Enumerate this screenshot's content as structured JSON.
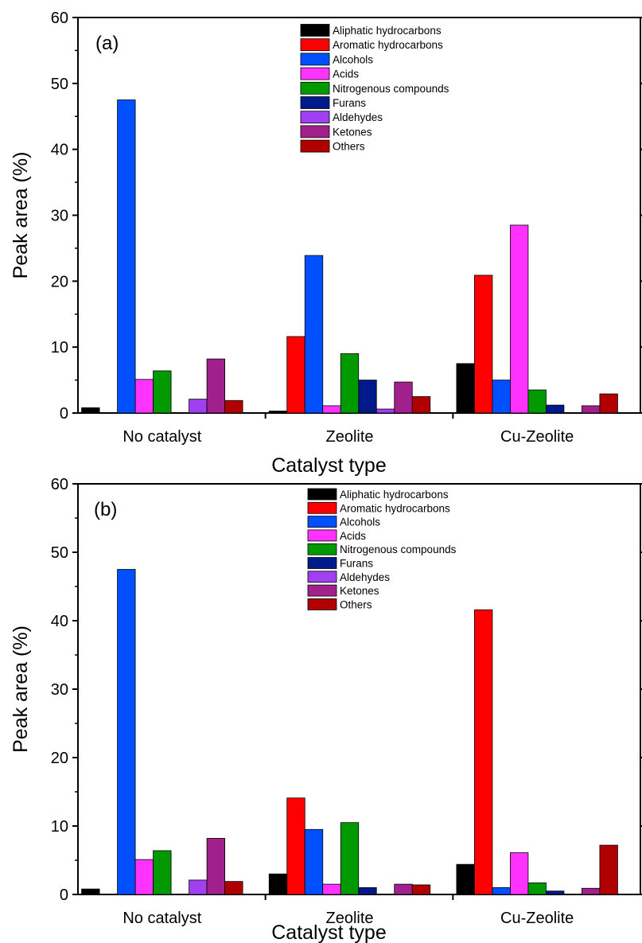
{
  "chart_data": [
    {
      "type": "bar",
      "panel_label": "(a)",
      "xlabel": "Catalyst type",
      "ylabel": "Peak area (%)",
      "ylim": [
        0,
        60
      ],
      "yticks": [
        0,
        10,
        20,
        30,
        40,
        50,
        60
      ],
      "categories": [
        "No catalyst",
        "Zeolite",
        "Cu-Zeolite"
      ],
      "legend_position": "top-right",
      "grid": false,
      "series": [
        {
          "name": "Aliphatic hydrocarbons",
          "color": "#000000",
          "values": [
            0.8,
            0.3,
            7.5
          ]
        },
        {
          "name": "Aromatic hydrocarbons",
          "color": "#ff0000",
          "values": [
            0,
            11.6,
            20.9
          ]
        },
        {
          "name": "Alcohols",
          "color": "#0050ff",
          "values": [
            47.5,
            23.9,
            5.0
          ]
        },
        {
          "name": "Acids",
          "color": "#ff33ff",
          "values": [
            5.1,
            1.1,
            28.5
          ]
        },
        {
          "name": "Nitrogenous compounds",
          "color": "#009a00",
          "values": [
            6.4,
            9.0,
            3.5
          ]
        },
        {
          "name": "Furans",
          "color": "#001a8c",
          "values": [
            0,
            5.0,
            1.2
          ]
        },
        {
          "name": "Aldehydes",
          "color": "#a040f0",
          "values": [
            2.1,
            0.6,
            0
          ]
        },
        {
          "name": "Ketones",
          "color": "#a0208c",
          "values": [
            8.2,
            4.7,
            1.1
          ]
        },
        {
          "name": "Others",
          "color": "#b00000",
          "values": [
            1.9,
            2.5,
            2.9
          ]
        }
      ]
    },
    {
      "type": "bar",
      "panel_label": "(b)",
      "xlabel": "Catalyst type",
      "ylabel": "Peak area (%)",
      "ylim": [
        0,
        60
      ],
      "yticks": [
        0,
        10,
        20,
        30,
        40,
        50,
        60
      ],
      "categories": [
        "No catalyst",
        "Zeolite",
        "Cu-Zeolite"
      ],
      "legend_position": "top-right",
      "grid": false,
      "series": [
        {
          "name": "Aliphatic hydrocarbons",
          "color": "#000000",
          "values": [
            0.8,
            3.0,
            4.4
          ]
        },
        {
          "name": "Aromatic hydrocarbons",
          "color": "#ff0000",
          "values": [
            0,
            14.1,
            41.6
          ]
        },
        {
          "name": "Alcohols",
          "color": "#0050ff",
          "values": [
            47.5,
            9.5,
            1.0
          ]
        },
        {
          "name": "Acids",
          "color": "#ff33ff",
          "values": [
            5.1,
            1.5,
            6.1
          ]
        },
        {
          "name": "Nitrogenous compounds",
          "color": "#009a00",
          "values": [
            6.4,
            10.5,
            1.7
          ]
        },
        {
          "name": "Furans",
          "color": "#001a8c",
          "values": [
            0,
            1.0,
            0.5
          ]
        },
        {
          "name": "Aldehydes",
          "color": "#a040f0",
          "values": [
            2.1,
            0,
            0
          ]
        },
        {
          "name": "Ketones",
          "color": "#a0208c",
          "values": [
            8.2,
            1.5,
            0.9
          ]
        },
        {
          "name": "Others",
          "color": "#b00000",
          "values": [
            1.9,
            1.4,
            7.2
          ]
        }
      ]
    }
  ]
}
